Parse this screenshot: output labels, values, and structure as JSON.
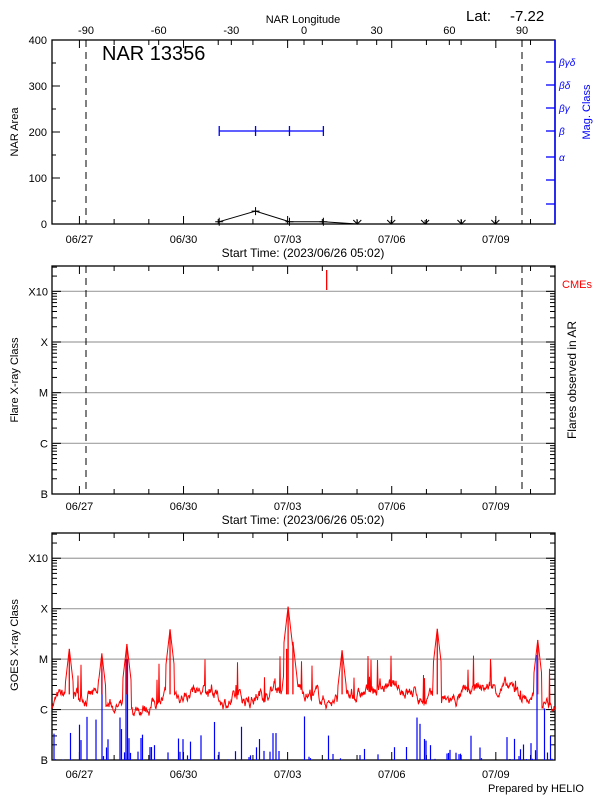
{
  "footer": "Prepared by HELIO",
  "colors": {
    "area": "#000000",
    "mag": "#0000ff",
    "goes": "#ff0000",
    "flares": "#0000ff",
    "cme": "#ff0000",
    "grid": "#a0a0a0"
  },
  "chart_data": [
    {
      "type": "line",
      "title": "NAR 13356",
      "lat_label": "Lat:",
      "lat_value": "-7.22",
      "top_xlabel": "NAR Longitude",
      "top_xticks": [
        -90,
        -60,
        -30,
        0,
        30,
        60,
        90
      ],
      "xlabel": "Start Time: (2023/06/26 05:02)",
      "xticks": [
        "06/27",
        "06/30",
        "07/03",
        "07/06",
        "07/09"
      ],
      "ylabel": "NAR Area",
      "ylim": [
        0,
        400
      ],
      "yticks": [
        0,
        100,
        200,
        300,
        400
      ],
      "right_ylabel": "Mag. Class",
      "right_yticks": [
        "α",
        "β",
        "βγ",
        "βδ",
        "βγδ"
      ],
      "limb_longitudes": [
        -90,
        90
      ],
      "area_series": {
        "longitude": [
          -35,
          -20,
          -6,
          8,
          22,
          36,
          50,
          65,
          79
        ],
        "area": [
          5,
          28,
          5,
          5,
          0,
          0,
          0,
          0,
          0
        ]
      },
      "mag_series": {
        "longitude": [
          -35,
          -20,
          -6,
          8
        ],
        "class": [
          "β",
          "β",
          "β",
          "β"
        ]
      }
    },
    {
      "type": "scatter",
      "xlabel": "Start Time: (2023/06/26 05:02)",
      "xticks": [
        "06/27",
        "06/30",
        "07/03",
        "07/06",
        "07/09"
      ],
      "ylabel": "Flare X-ray Class",
      "yticks": [
        "B",
        "C",
        "M",
        "X",
        "X10"
      ],
      "right_ylabel": "Flares observed in AR",
      "cme_label": "CMEs",
      "cmes": [
        "07/04 03:00"
      ],
      "grid": true
    },
    {
      "type": "line",
      "ylabel": "GOES X-ray Class",
      "xticks": [
        "06/27",
        "06/30",
        "07/03",
        "07/06",
        "07/09"
      ],
      "yticks": [
        "B",
        "C",
        "M",
        "X",
        "X10"
      ],
      "yscale": "log",
      "grid": true,
      "goes_peaks": [
        {
          "time": "06/26 17:00",
          "class": "M1.6"
        },
        {
          "time": "06/27 15:30",
          "class": "M1.3"
        },
        {
          "time": "06/28 08:50",
          "class": "M2.0"
        },
        {
          "time": "06/29 14:40",
          "class": "M3.9"
        },
        {
          "time": "07/02 23:20",
          "class": "M1.6"
        },
        {
          "time": "07/03 03:40",
          "class": "M2.2"
        },
        {
          "time": "07/03 00:20",
          "class": "X1.1"
        },
        {
          "time": "07/04 13:40",
          "class": "M1.5"
        },
        {
          "time": "07/07 07:30",
          "class": "M4.0"
        },
        {
          "time": "07/10 05:00",
          "class": "M2.4"
        }
      ],
      "goes_baseline_class": "C2"
    }
  ]
}
